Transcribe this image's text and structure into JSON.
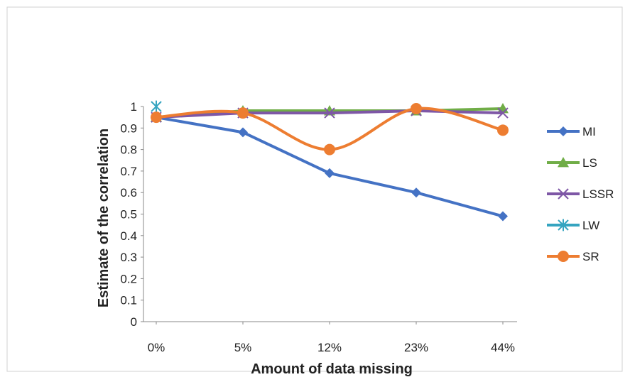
{
  "chart_data": {
    "type": "line",
    "title": "",
    "xlabel": "Amount of data missing",
    "ylabel": "Estimate of the correlation",
    "categories": [
      "0%",
      "5%",
      "12%",
      "23%",
      "44%"
    ],
    "ylim": [
      0,
      1
    ],
    "yticks": [
      "0",
      "0.1",
      "0.2",
      "0.3",
      "0.4",
      "0.5",
      "0.6",
      "0.7",
      "0.8",
      "0.9",
      "1"
    ],
    "grid": false,
    "legend_position": "right",
    "series": [
      {
        "name": "MI",
        "color": "#4472C4",
        "marker": "diamond",
        "smooth": false,
        "values": [
          0.95,
          0.88,
          0.69,
          0.6,
          0.49
        ]
      },
      {
        "name": "LS",
        "color": "#70AD47",
        "marker": "triangle",
        "smooth": false,
        "values": [
          0.95,
          0.98,
          0.98,
          0.98,
          0.99
        ]
      },
      {
        "name": "LSSR",
        "color": "#7E57A6",
        "marker": "x",
        "smooth": false,
        "values": [
          0.95,
          0.97,
          0.97,
          0.98,
          0.97
        ]
      },
      {
        "name": "LW",
        "color": "#35A4C0",
        "marker": "asterisk",
        "smooth": false,
        "values": [
          1.0,
          null,
          null,
          null,
          null
        ]
      },
      {
        "name": "SR",
        "color": "#ED7D31",
        "marker": "circle",
        "smooth": true,
        "values": [
          0.95,
          0.97,
          0.8,
          0.99,
          0.89
        ]
      }
    ]
  }
}
